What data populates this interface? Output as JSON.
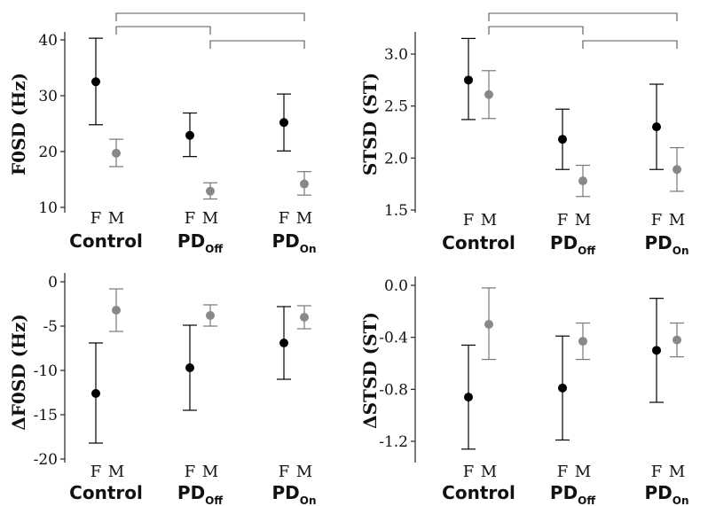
{
  "chart_data": [
    {
      "type": "scatter",
      "ylabel": "F0SD (Hz)",
      "ylim": [
        9,
        42
      ],
      "yticks": [
        10,
        20,
        30,
        40
      ],
      "ytick_labels": [
        "10",
        "20",
        "30",
        "40"
      ],
      "groups": [
        {
          "name": "Control",
          "sub": ""
        },
        {
          "name": "PD",
          "sub": "Off"
        },
        {
          "name": "PD",
          "sub": "On"
        }
      ],
      "sexes": [
        "F",
        "M"
      ],
      "points": [
        {
          "group": 0,
          "sex": "F",
          "mean": 32.5,
          "low": 24.8,
          "high": 40.3
        },
        {
          "group": 0,
          "sex": "M",
          "mean": 19.7,
          "low": 17.3,
          "high": 22.2
        },
        {
          "group": 1,
          "sex": "F",
          "mean": 22.9,
          "low": 19.1,
          "high": 26.9
        },
        {
          "group": 1,
          "sex": "M",
          "mean": 12.9,
          "low": 11.5,
          "high": 14.4
        },
        {
          "group": 2,
          "sex": "F",
          "mean": 25.2,
          "low": 20.1,
          "high": 30.3
        },
        {
          "group": 2,
          "sex": "M",
          "mean": 14.2,
          "low": 12.2,
          "high": 16.4
        }
      ],
      "brackets": [
        [
          0,
          2
        ],
        [
          0,
          1
        ],
        [
          1,
          2
        ]
      ]
    },
    {
      "type": "scatter",
      "ylabel": "STSD (ST)",
      "ylim": [
        1.48,
        3.25
      ],
      "yticks": [
        1.5,
        2.0,
        2.5,
        3.0
      ],
      "ytick_labels": [
        "1.5",
        "2.0",
        "2.5",
        "3.0"
      ],
      "groups": [
        {
          "name": "Control",
          "sub": ""
        },
        {
          "name": "PD",
          "sub": "Off"
        },
        {
          "name": "PD",
          "sub": "On"
        }
      ],
      "sexes": [
        "F",
        "M"
      ],
      "points": [
        {
          "group": 0,
          "sex": "F",
          "mean": 2.75,
          "low": 2.37,
          "high": 3.15
        },
        {
          "group": 0,
          "sex": "M",
          "mean": 2.61,
          "low": 2.38,
          "high": 2.84
        },
        {
          "group": 1,
          "sex": "F",
          "mean": 2.18,
          "low": 1.89,
          "high": 2.47
        },
        {
          "group": 1,
          "sex": "M",
          "mean": 1.78,
          "low": 1.63,
          "high": 1.93
        },
        {
          "group": 2,
          "sex": "F",
          "mean": 2.3,
          "low": 1.89,
          "high": 2.71
        },
        {
          "group": 2,
          "sex": "M",
          "mean": 1.89,
          "low": 1.68,
          "high": 2.1
        }
      ],
      "brackets": [
        [
          0,
          2
        ],
        [
          0,
          1
        ],
        [
          1,
          2
        ]
      ]
    },
    {
      "type": "scatter",
      "ylabel": "ΔF0SD (Hz)",
      "ylim": [
        -20.3,
        0.4
      ],
      "yticks": [
        -20,
        -15,
        -10,
        -5,
        0
      ],
      "ytick_labels": [
        "-20",
        "-15",
        "-10",
        "-5",
        "0"
      ],
      "groups": [
        {
          "name": "Control",
          "sub": ""
        },
        {
          "name": "PD",
          "sub": "Off"
        },
        {
          "name": "PD",
          "sub": "On"
        }
      ],
      "sexes": [
        "F",
        "M"
      ],
      "points": [
        {
          "group": 0,
          "sex": "F",
          "mean": -12.6,
          "low": -18.2,
          "high": -6.9
        },
        {
          "group": 0,
          "sex": "M",
          "mean": -3.2,
          "low": -5.6,
          "high": -0.8
        },
        {
          "group": 1,
          "sex": "F",
          "mean": -9.7,
          "low": -14.5,
          "high": -4.9
        },
        {
          "group": 1,
          "sex": "M",
          "mean": -3.8,
          "low": -5.0,
          "high": -2.6
        },
        {
          "group": 2,
          "sex": "F",
          "mean": -6.9,
          "low": -11.0,
          "high": -2.8
        },
        {
          "group": 2,
          "sex": "M",
          "mean": -4.0,
          "low": -5.3,
          "high": -2.7
        }
      ],
      "brackets": []
    },
    {
      "type": "scatter",
      "ylabel": "ΔSTSD (ST)",
      "ylim": [
        -1.32,
        0.03
      ],
      "yticks": [
        -1.2,
        -0.8,
        -0.4,
        0.0
      ],
      "ytick_labels": [
        "-1.2",
        "-0.8",
        "-0.4",
        "0.0"
      ],
      "groups": [
        {
          "name": "Control",
          "sub": ""
        },
        {
          "name": "PD",
          "sub": "Off"
        },
        {
          "name": "PD",
          "sub": "On"
        }
      ],
      "sexes": [
        "F",
        "M"
      ],
      "points": [
        {
          "group": 0,
          "sex": "F",
          "mean": -0.86,
          "low": -1.26,
          "high": -0.46
        },
        {
          "group": 0,
          "sex": "M",
          "mean": -0.3,
          "low": -0.57,
          "high": -0.02
        },
        {
          "group": 1,
          "sex": "F",
          "mean": -0.79,
          "low": -1.19,
          "high": -0.39
        },
        {
          "group": 1,
          "sex": "M",
          "mean": -0.43,
          "low": -0.57,
          "high": -0.29
        },
        {
          "group": 2,
          "sex": "F",
          "mean": -0.5,
          "low": -0.9,
          "high": -0.1
        },
        {
          "group": 2,
          "sex": "M",
          "mean": -0.42,
          "low": -0.55,
          "high": -0.29
        }
      ],
      "brackets": []
    }
  ],
  "colors": {
    "female": "#000000",
    "male": "#888888",
    "male_errorbar": "#777777",
    "axis": "#222222",
    "bracket": "#555555"
  }
}
